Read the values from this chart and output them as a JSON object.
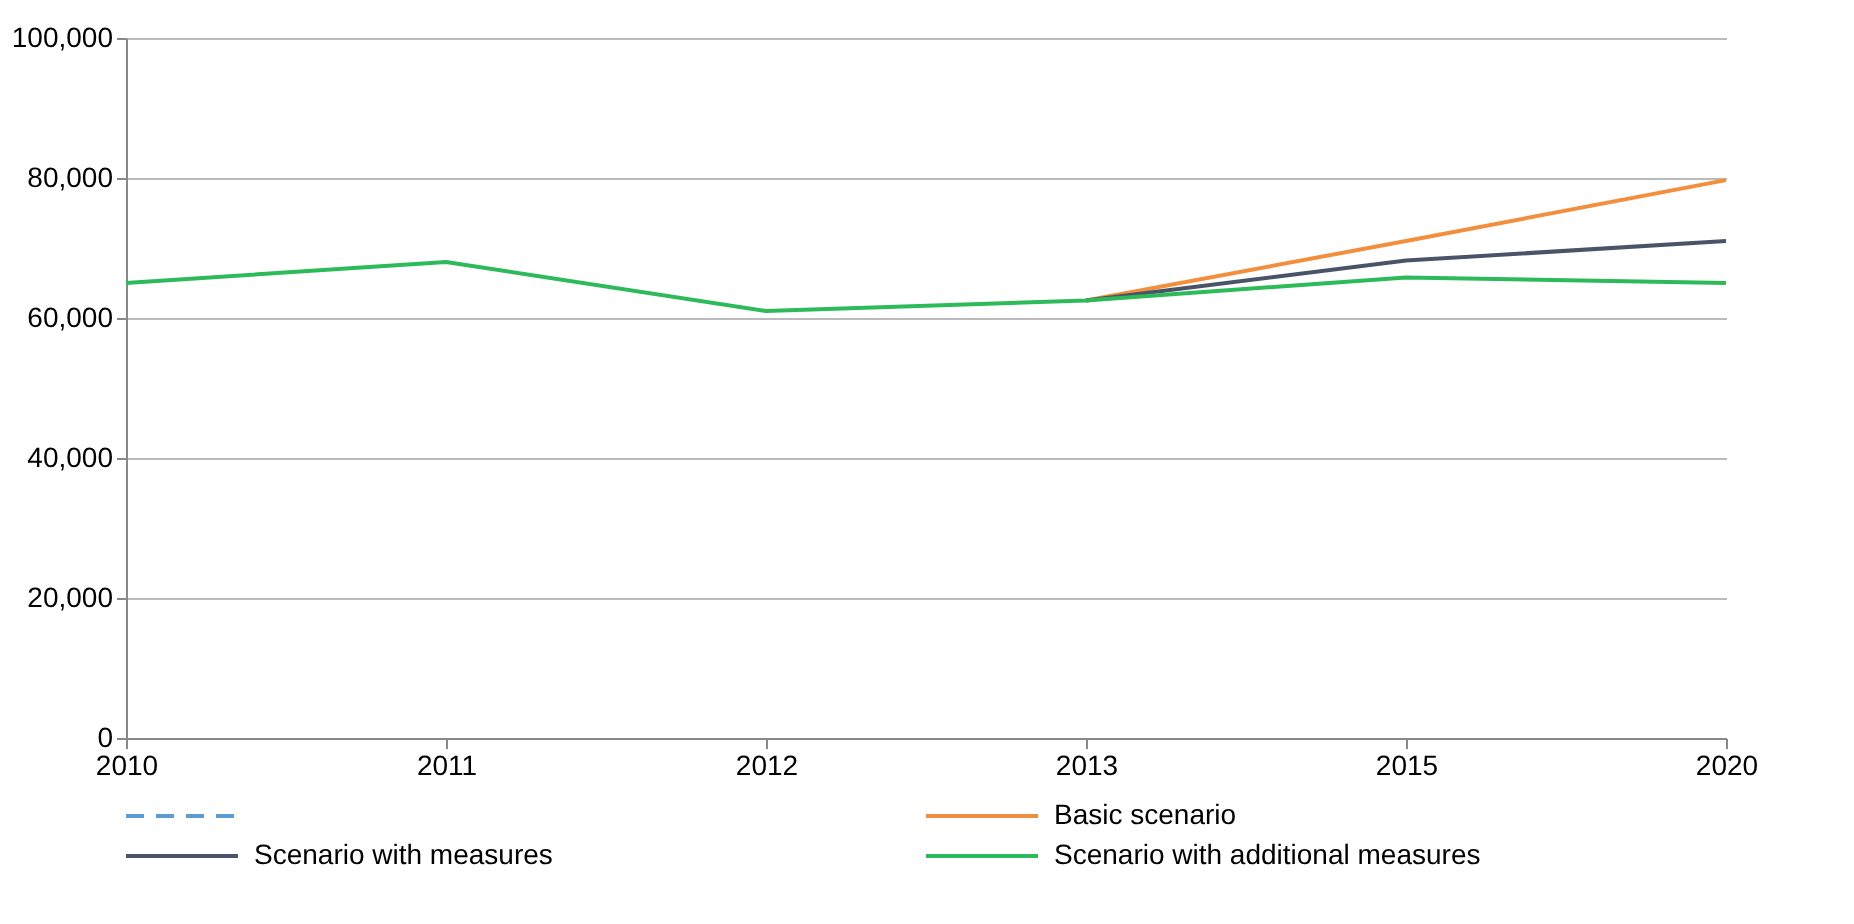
{
  "chart_data": {
    "type": "line",
    "categories": [
      "2010",
      "2011",
      "2012",
      "2013",
      "2015",
      "2020"
    ],
    "series": [
      {
        "color": "#5b9bd5",
        "line_style": "dashed",
        "values": [
          null,
          null,
          null,
          null,
          null,
          null
        ]
      },
      {
        "name": "Basic scenario",
        "color": "#f28e3c",
        "values": [
          null,
          null,
          null,
          62500,
          71000,
          79700
        ]
      },
      {
        "name": "Scenario with measures",
        "color": "#4a5468",
        "values": [
          null,
          null,
          null,
          62500,
          68200,
          71000
        ]
      },
      {
        "name": "Scenario with additional measures",
        "color": "#2dbb5a",
        "values": [
          65000,
          68000,
          61000,
          62500,
          65800,
          65000
        ]
      }
    ],
    "ylim": [
      0,
      100000
    ],
    "yticks": [
      0,
      {
        "value": 20000,
        "label": "20,000"
      },
      {
        "value": 40000,
        "label": "40,000"
      },
      {
        "value": 60000,
        "label": "60,000"
      },
      {
        "value": 80000,
        "label": "80,000"
      },
      {
        "value": 100000,
        "label": "100,000"
      }
    ],
    "grid": "y",
    "legend": "bottom",
    "line_style": "solid",
    "marker": "none"
  }
}
